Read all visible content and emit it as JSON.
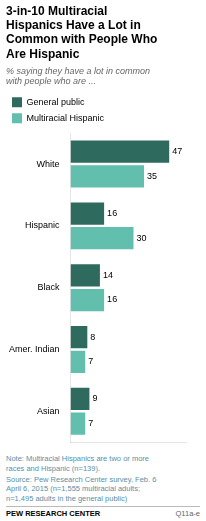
{
  "chart_data": {
    "type": "bar",
    "orientation": "horizontal",
    "title": "3-in-10 Multiracial\nHispanics Have a Lot in\nCommon with People Who\nAre Hispanic",
    "subtitle": "% saying they have a lot in common\nwith people who are ...",
    "categories": [
      "White",
      "Hispanic",
      "Black",
      "Amer. Indian",
      "Asian"
    ],
    "series": [
      {
        "name": "General public",
        "color": "#2e6b5e",
        "values": [
          47,
          16,
          14,
          8,
          9
        ]
      },
      {
        "name": "Multiracial Hispanic",
        "color": "#62bfad",
        "values": [
          35,
          30,
          16,
          7,
          7
        ]
      }
    ],
    "xlim": [
      0,
      55
    ],
    "grid": false,
    "legend": "top",
    "data_labels": true,
    "tick_labels": "y",
    "annotations": [
      "Note: Multiracial Hispanics are two or more\nraces and Hispanic (n=139).",
      "Source: Pew Research Center survey, Feb. 6\nApril 6, 2015 (n=1,555 multiracial adults;\nn=1,495 adults in the general public)",
      "PEW RESEARCH CENTER",
      "Q11a-e"
    ]
  }
}
